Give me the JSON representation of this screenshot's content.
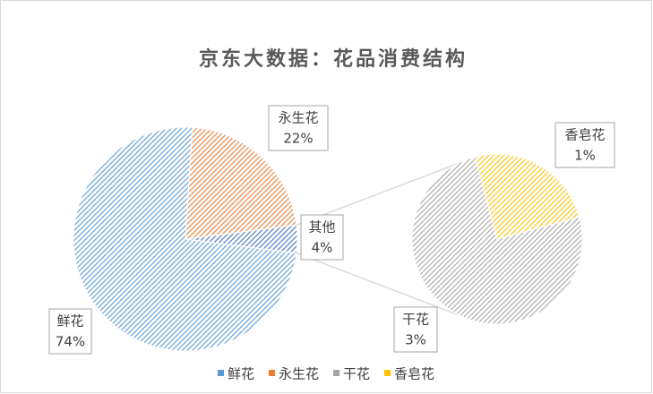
{
  "chart_data": {
    "type": "pie-of-pie",
    "title": "京东大数据：花品消费结构",
    "categories": [
      "鲜花",
      "永生花",
      "其他"
    ],
    "values": [
      74,
      22,
      4
    ],
    "value_labels": [
      "74%",
      "22%",
      "4%"
    ],
    "colors": [
      "#5b9bd5",
      "#ed7d31",
      "#4472c4"
    ],
    "secondary": {
      "categories": [
        "干花",
        "香皂花"
      ],
      "values": [
        3,
        1
      ],
      "value_labels": [
        "3%",
        "1%"
      ],
      "colors": [
        "#a5a5a5",
        "#ffc000"
      ]
    }
  }
}
